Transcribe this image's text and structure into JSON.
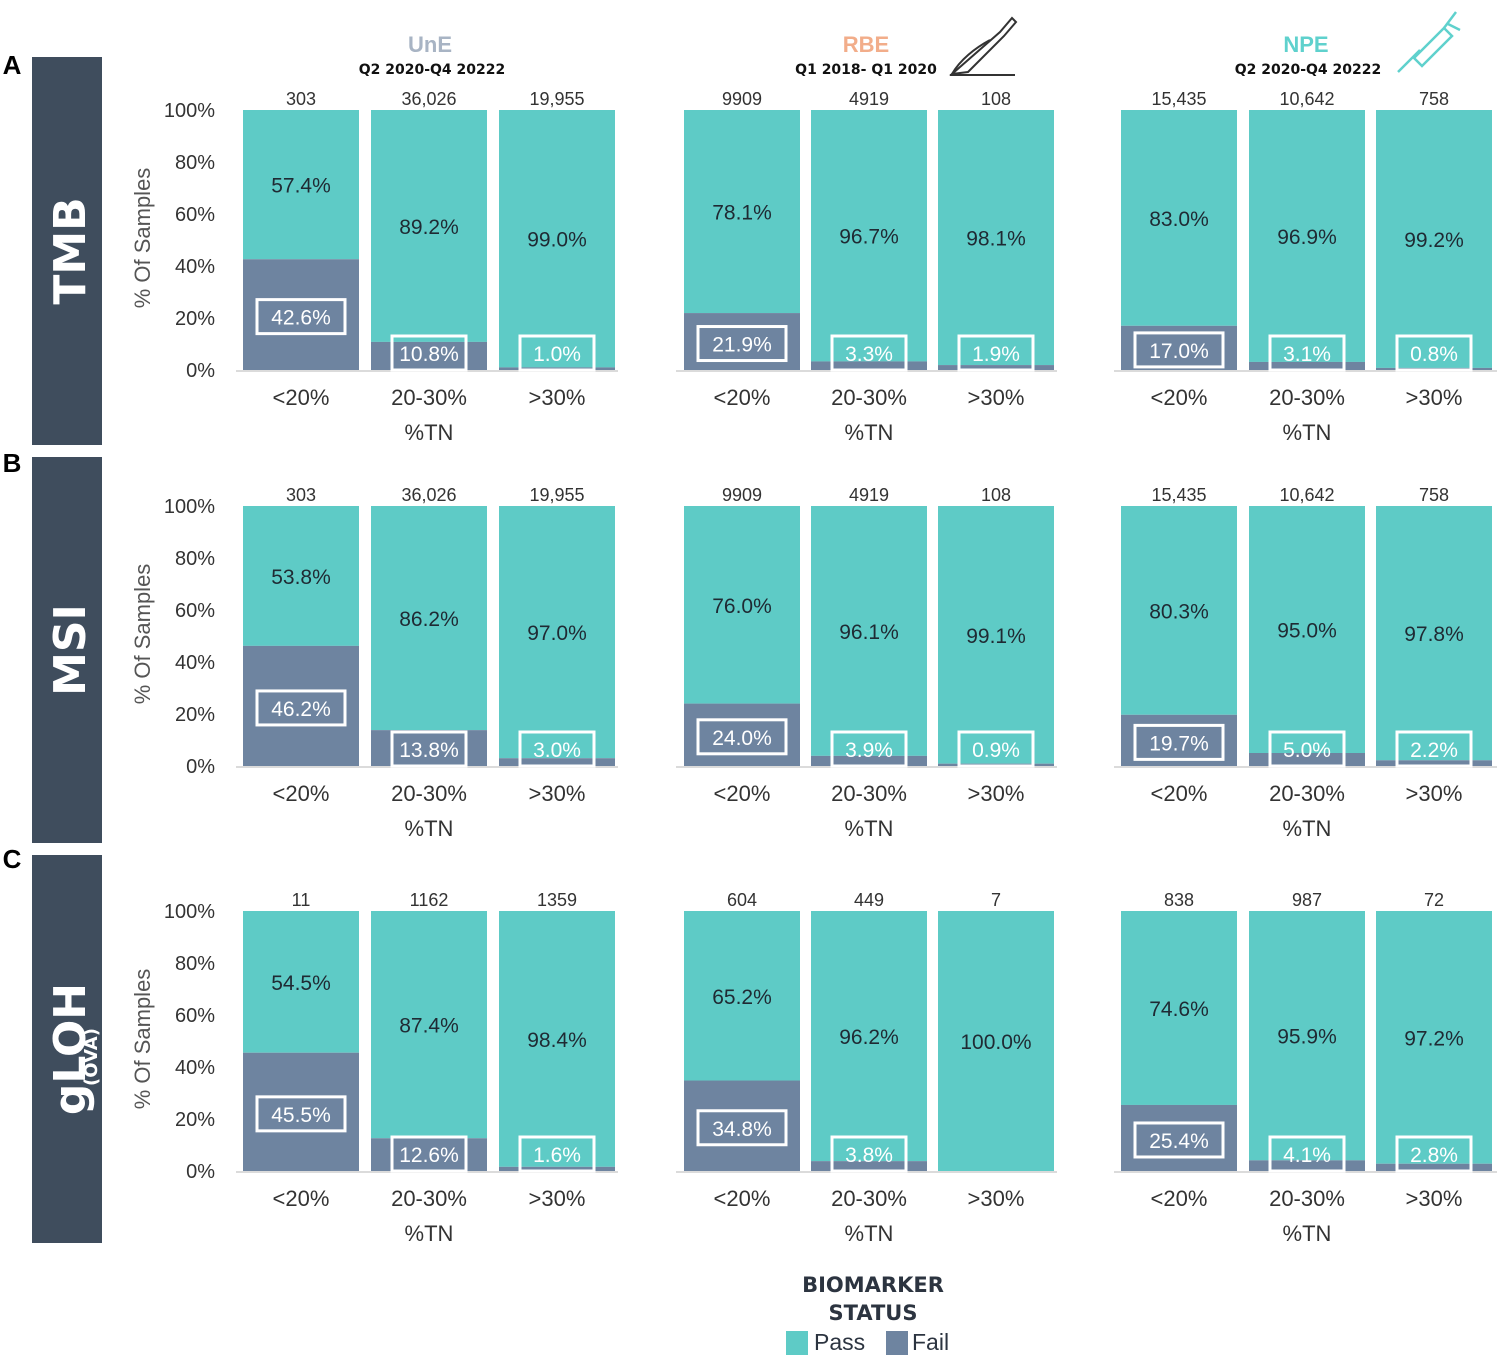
{
  "colors": {
    "pass": "#5ecbc6",
    "fail": "#6e84a0",
    "panel_label_bg": "#3f4d5d",
    "une": "#a8b4c4",
    "rbe": "#f2ad8a",
    "npe": "#5fd1cd",
    "text": "#333333"
  },
  "panel_letters": [
    "A",
    "B",
    "C"
  ],
  "row_labels": [
    {
      "main": "TMB",
      "sub": ""
    },
    {
      "main": "MSI",
      "sub": ""
    },
    {
      "main": "gLOH",
      "sub": "(OVA)"
    }
  ],
  "groups": [
    {
      "name": "UnE",
      "period": "Q2 2020-Q4 20222",
      "icon": "none"
    },
    {
      "name": "RBE",
      "period": "Q1 2018- Q1 2020",
      "icon": "scalpel-icon"
    },
    {
      "name": "NPE",
      "period": "Q2 2020-Q4 20222",
      "icon": "needle-icon"
    }
  ],
  "y_axis_label": "% Of Samples",
  "x_axis_label": "%TN",
  "legend": {
    "title_line1": "BIOMARKER",
    "title_line2": "STATUS",
    "pass_label": "Pass",
    "fail_label": "Fail"
  },
  "chart_data": {
    "type": "bar",
    "stacked": true,
    "categories": [
      "<20%",
      "20-30%",
      ">30%"
    ],
    "yticks": [
      "0%",
      "20%",
      "40%",
      "60%",
      "80%",
      "100%"
    ],
    "ylim": [
      0,
      100
    ],
    "panels": [
      {
        "row": "TMB",
        "group": "UnE",
        "n": [
          "303",
          "36,026",
          "19,955"
        ],
        "pass": [
          57.4,
          89.2,
          99.0
        ],
        "fail": [
          42.6,
          10.8,
          1.0
        ],
        "pass_labels": [
          "57.4%",
          "89.2%",
          "99.0%"
        ],
        "fail_labels": [
          "42.6%",
          "10.8%",
          "1.0%"
        ]
      },
      {
        "row": "TMB",
        "group": "RBE",
        "n": [
          "9909",
          "4919",
          "108"
        ],
        "pass": [
          78.1,
          96.7,
          98.1
        ],
        "fail": [
          21.9,
          3.3,
          1.9
        ],
        "pass_labels": [
          "78.1%",
          "96.7%",
          "98.1%"
        ],
        "fail_labels": [
          "21.9%",
          "3.3%",
          "1.9%"
        ]
      },
      {
        "row": "TMB",
        "group": "NPE",
        "n": [
          "15,435",
          "10,642",
          "758"
        ],
        "pass": [
          83.0,
          96.9,
          99.2
        ],
        "fail": [
          17.0,
          3.1,
          0.8
        ],
        "pass_labels": [
          "83.0%",
          "96.9%",
          "99.2%"
        ],
        "fail_labels": [
          "17.0%",
          "3.1%",
          "0.8%"
        ]
      },
      {
        "row": "MSI",
        "group": "UnE",
        "n": [
          "303",
          "36,026",
          "19,955"
        ],
        "pass": [
          53.8,
          86.2,
          97.0
        ],
        "fail": [
          46.2,
          13.8,
          3.0
        ],
        "pass_labels": [
          "53.8%",
          "86.2%",
          "97.0%"
        ],
        "fail_labels": [
          "46.2%",
          "13.8%",
          "3.0%"
        ]
      },
      {
        "row": "MSI",
        "group": "RBE",
        "n": [
          "9909",
          "4919",
          "108"
        ],
        "pass": [
          76.0,
          96.1,
          99.1
        ],
        "fail": [
          24.0,
          3.9,
          0.9
        ],
        "pass_labels": [
          "76.0%",
          "96.1%",
          "99.1%"
        ],
        "fail_labels": [
          "24.0%",
          "3.9%",
          "0.9%"
        ]
      },
      {
        "row": "MSI",
        "group": "NPE",
        "n": [
          "15,435",
          "10,642",
          "758"
        ],
        "pass": [
          80.3,
          95.0,
          97.8
        ],
        "fail": [
          19.7,
          5.0,
          2.2
        ],
        "pass_labels": [
          "80.3%",
          "95.0%",
          "97.8%"
        ],
        "fail_labels": [
          "19.7%",
          "5.0%",
          "2.2%"
        ]
      },
      {
        "row": "gLOH",
        "group": "UnE",
        "n": [
          "11",
          "1162",
          "1359"
        ],
        "pass": [
          54.5,
          87.4,
          98.4
        ],
        "fail": [
          45.5,
          12.6,
          1.6
        ],
        "pass_labels": [
          "54.5%",
          "87.4%",
          "98.4%"
        ],
        "fail_labels": [
          "45.5%",
          "12.6%",
          "1.6%"
        ]
      },
      {
        "row": "gLOH",
        "group": "RBE",
        "n": [
          "604",
          "449",
          "7"
        ],
        "pass": [
          65.2,
          96.2,
          100.0
        ],
        "fail": [
          34.8,
          3.8,
          0.0
        ],
        "pass_labels": [
          "65.2%",
          "96.2%",
          "100.0%"
        ],
        "fail_labels": [
          "34.8%",
          "3.8%",
          ""
        ]
      },
      {
        "row": "gLOH",
        "group": "NPE",
        "n": [
          "838",
          "987",
          "72"
        ],
        "pass": [
          74.6,
          95.9,
          97.2
        ],
        "fail": [
          25.4,
          4.1,
          2.8
        ],
        "pass_labels": [
          "74.6%",
          "95.9%",
          "97.2%"
        ],
        "fail_labels": [
          "25.4%",
          "4.1%",
          "2.8%"
        ]
      }
    ]
  }
}
